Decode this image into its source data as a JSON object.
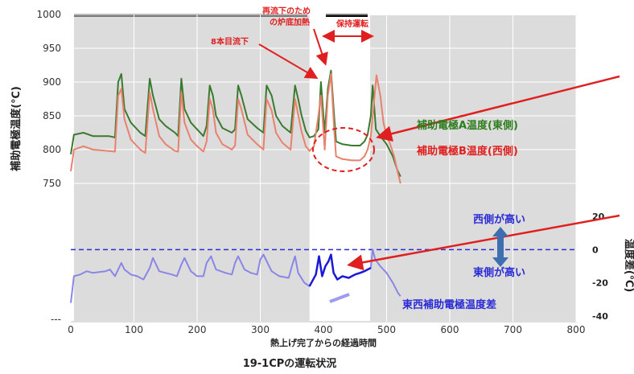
{
  "chart_data": {
    "type": "line",
    "title": "19-1CPの運転状況",
    "xlabel": "熱上げ完了からの経過時間",
    "ylabel_left": "補助電極温度(℃)",
    "ylabel_right": "温度差(℃)",
    "xlim": [
      0,
      800
    ],
    "ylim_left": [
      700,
      1000
    ],
    "ylim_right": [
      -40,
      20
    ],
    "x_ticks": [
      "0",
      "100",
      "200",
      "300",
      "400",
      "500",
      "600",
      "700",
      "800"
    ],
    "y_ticks_left": [
      "1000",
      "950",
      "900",
      "850",
      "800",
      "750",
      "---"
    ],
    "y_ticks_right": [
      "20",
      "0",
      "-20",
      "-40"
    ],
    "grid": true,
    "shaded_regions": [
      [
        5,
        378
      ],
      [
        474,
        800
      ]
    ],
    "series": [
      {
        "name": "補助電極A温度(東側)",
        "axis": "left",
        "color": "#3a7a2e",
        "points": [
          [
            0,
            793
          ],
          [
            5,
            822
          ],
          [
            20,
            825
          ],
          [
            35,
            820
          ],
          [
            60,
            820
          ],
          [
            70,
            818
          ],
          [
            75,
            900
          ],
          [
            80,
            912
          ],
          [
            85,
            860
          ],
          [
            95,
            840
          ],
          [
            110,
            825
          ],
          [
            118,
            820
          ],
          [
            125,
            905
          ],
          [
            130,
            880
          ],
          [
            140,
            845
          ],
          [
            150,
            835
          ],
          [
            165,
            825
          ],
          [
            170,
            820
          ],
          [
            175,
            905
          ],
          [
            180,
            860
          ],
          [
            190,
            840
          ],
          [
            200,
            830
          ],
          [
            210,
            820
          ],
          [
            215,
            835
          ],
          [
            220,
            895
          ],
          [
            225,
            880
          ],
          [
            230,
            850
          ],
          [
            240,
            832
          ],
          [
            255,
            825
          ],
          [
            260,
            830
          ],
          [
            265,
            895
          ],
          [
            270,
            880
          ],
          [
            280,
            845
          ],
          [
            295,
            832
          ],
          [
            305,
            825
          ],
          [
            310,
            895
          ],
          [
            318,
            880
          ],
          [
            325,
            850
          ],
          [
            335,
            835
          ],
          [
            348,
            825
          ],
          [
            355,
            895
          ],
          [
            360,
            875
          ],
          [
            365,
            852
          ],
          [
            372,
            828
          ],
          [
            378,
            818
          ],
          [
            385,
            820
          ],
          [
            392,
            830
          ],
          [
            396,
            900
          ],
          [
            402,
            825
          ],
          [
            407,
            890
          ],
          [
            412,
            917
          ],
          [
            417,
            850
          ],
          [
            420,
            812
          ],
          [
            430,
            808
          ],
          [
            445,
            806
          ],
          [
            458,
            806
          ],
          [
            465,
            812
          ],
          [
            470,
            822
          ],
          [
            475,
            850
          ],
          [
            478,
            895
          ],
          [
            483,
            830
          ],
          [
            490,
            820
          ],
          [
            500,
            808
          ],
          [
            510,
            790
          ],
          [
            517,
            770
          ],
          [
            522,
            760
          ]
        ]
      },
      {
        "name": "補助電極B温度(西側)",
        "axis": "left",
        "color": "#e8826e",
        "points": [
          [
            0,
            768
          ],
          [
            5,
            800
          ],
          [
            20,
            805
          ],
          [
            35,
            800
          ],
          [
            60,
            798
          ],
          [
            70,
            797
          ],
          [
            75,
            880
          ],
          [
            80,
            890
          ],
          [
            85,
            845
          ],
          [
            95,
            815
          ],
          [
            110,
            800
          ],
          [
            118,
            795
          ],
          [
            125,
            885
          ],
          [
            130,
            860
          ],
          [
            140,
            820
          ],
          [
            150,
            808
          ],
          [
            165,
            798
          ],
          [
            170,
            797
          ],
          [
            175,
            885
          ],
          [
            180,
            840
          ],
          [
            190,
            815
          ],
          [
            200,
            805
          ],
          [
            210,
            797
          ],
          [
            215,
            812
          ],
          [
            220,
            875
          ],
          [
            225,
            860
          ],
          [
            230,
            825
          ],
          [
            240,
            808
          ],
          [
            255,
            800
          ],
          [
            260,
            806
          ],
          [
            265,
            875
          ],
          [
            270,
            860
          ],
          [
            280,
            822
          ],
          [
            295,
            808
          ],
          [
            305,
            800
          ],
          [
            310,
            875
          ],
          [
            318,
            858
          ],
          [
            325,
            825
          ],
          [
            335,
            810
          ],
          [
            348,
            800
          ],
          [
            355,
            875
          ],
          [
            360,
            852
          ],
          [
            365,
            828
          ],
          [
            372,
            805
          ],
          [
            378,
            798
          ],
          [
            385,
            805
          ],
          [
            392,
            850
          ],
          [
            396,
            880
          ],
          [
            402,
            800
          ],
          [
            407,
            880
          ],
          [
            412,
            912
          ],
          [
            417,
            830
          ],
          [
            420,
            790
          ],
          [
            430,
            786
          ],
          [
            445,
            784
          ],
          [
            458,
            784
          ],
          [
            465,
            790
          ],
          [
            470,
            800
          ],
          [
            475,
            820
          ],
          [
            480,
            870
          ],
          [
            484,
            910
          ],
          [
            490,
            880
          ],
          [
            495,
            840
          ],
          [
            500,
            820
          ],
          [
            505,
            810
          ],
          [
            512,
            790
          ],
          [
            518,
            765
          ],
          [
            522,
            750
          ]
        ]
      },
      {
        "name": "東西補助電極温度差",
        "axis": "right",
        "color": "#8a86e6",
        "points": [
          [
            0,
            -32
          ],
          [
            5,
            -16
          ],
          [
            15,
            -15
          ],
          [
            25,
            -13
          ],
          [
            35,
            -14
          ],
          [
            55,
            -13
          ],
          [
            62,
            -12
          ],
          [
            70,
            -16
          ],
          [
            80,
            -8
          ],
          [
            85,
            -12
          ],
          [
            95,
            -15
          ],
          [
            105,
            -16
          ],
          [
            115,
            -18
          ],
          [
            125,
            -11
          ],
          [
            130,
            -5
          ],
          [
            140,
            -13
          ],
          [
            150,
            -14
          ],
          [
            160,
            -15
          ],
          [
            168,
            -16
          ],
          [
            175,
            -9
          ],
          [
            180,
            -5
          ],
          [
            190,
            -13
          ],
          [
            200,
            -16
          ],
          [
            210,
            -16
          ],
          [
            215,
            -8
          ],
          [
            222,
            -4
          ],
          [
            230,
            -12
          ],
          [
            245,
            -14
          ],
          [
            255,
            -15
          ],
          [
            260,
            -8
          ],
          [
            265,
            -4
          ],
          [
            275,
            -12
          ],
          [
            285,
            -14
          ],
          [
            295,
            -15
          ],
          [
            300,
            -6
          ],
          [
            305,
            -3
          ],
          [
            318,
            -13
          ],
          [
            330,
            -16
          ],
          [
            345,
            -17
          ],
          [
            350,
            -10
          ],
          [
            355,
            -4
          ],
          [
            360,
            -14
          ],
          [
            370,
            -20
          ],
          [
            378,
            -22
          ],
          [
            388,
            -15
          ],
          [
            393,
            -4
          ],
          [
            398,
            -16
          ],
          [
            403,
            -10
          ],
          [
            408,
            -7
          ],
          [
            412,
            -3
          ],
          [
            416,
            -14
          ],
          [
            422,
            -18
          ],
          [
            430,
            -16
          ],
          [
            440,
            -17
          ],
          [
            450,
            -15
          ],
          [
            458,
            -14
          ],
          [
            465,
            -13
          ],
          [
            470,
            -12
          ],
          [
            475,
            -11
          ],
          [
            478,
            0
          ],
          [
            482,
            -6
          ],
          [
            490,
            -10
          ],
          [
            500,
            -14
          ],
          [
            510,
            -20
          ],
          [
            518,
            -26
          ],
          [
            522,
            -28
          ]
        ]
      }
    ],
    "series_highlight_color": "#1a1ad6",
    "dashed_level_y_right": 0,
    "annotations": [
      {
        "text": "8本目流下",
        "color": "#e02020"
      },
      {
        "text": "再流下のため",
        "color": "#e02020"
      },
      {
        "text": "の炉底加熱",
        "color": "#e02020"
      },
      {
        "text": "保持運転",
        "color": "#e02020"
      },
      {
        "text": "補助電極A温度(東側)",
        "color": "#2e7d1e"
      },
      {
        "text": "補助電極B温度(西側)",
        "color": "#e02020"
      },
      {
        "text": "西側が高い",
        "color": "#2a2ad6"
      },
      {
        "text": "東側が高い",
        "color": "#2a2ad6"
      },
      {
        "text": "東西補助電極温度差",
        "color": "#2a2ad6"
      }
    ]
  }
}
